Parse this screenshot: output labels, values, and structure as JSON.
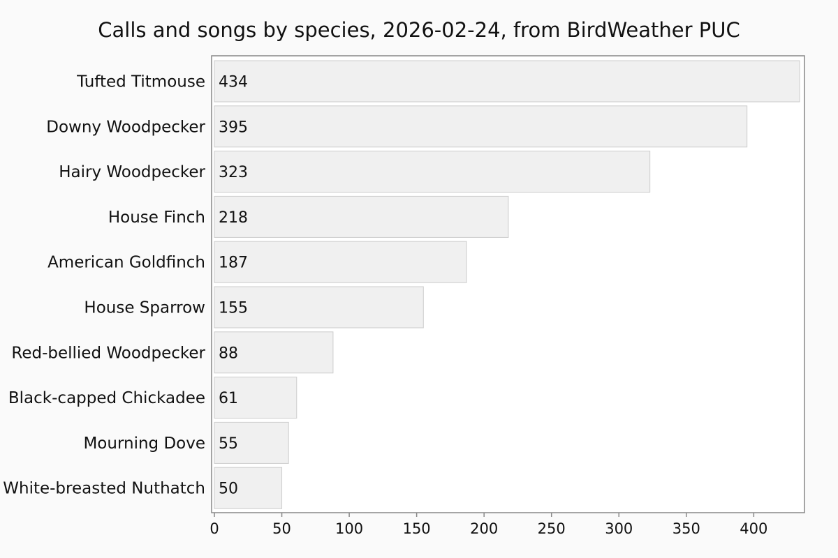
{
  "chart_data": {
    "type": "bar",
    "orientation": "horizontal",
    "title": "Calls and songs by species, 2026-02-24, from BirdWeather PUC",
    "xlabel": "",
    "ylabel": "",
    "categories": [
      "Tufted Titmouse",
      "Downy Woodpecker",
      "Hairy Woodpecker",
      "House Finch",
      "American Goldfinch",
      "House Sparrow",
      "Red-bellied Woodpecker",
      "Black-capped Chickadee",
      "Mourning Dove",
      "White-breasted Nuthatch"
    ],
    "values": [
      434,
      395,
      323,
      218,
      187,
      155,
      88,
      61,
      55,
      50
    ],
    "xlim": [
      0,
      434
    ],
    "xticks": [
      0,
      50,
      100,
      150,
      200,
      250,
      300,
      350,
      400
    ],
    "grid": false,
    "legend": "none",
    "colors": {
      "bar_fill": "#f0f0f0",
      "bar_stroke": "#cccccc",
      "plot_background": "#ffffff",
      "page_background": "#fafafa",
      "axis": "#888888",
      "text": "#111111"
    }
  }
}
